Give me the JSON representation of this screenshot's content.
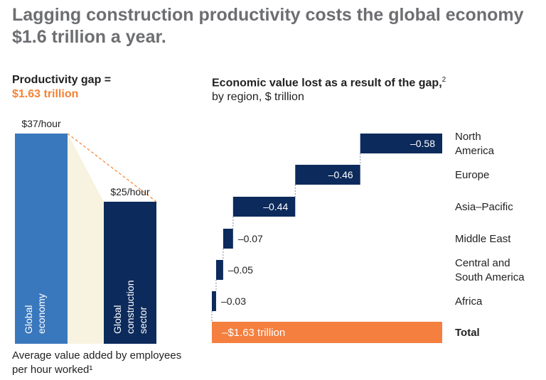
{
  "title": "Lagging construction productivity costs the global economy $1.6 trillion a year.",
  "left_panel": {
    "heading": "Productivity gap =",
    "gap_value": "$1.63 trillion",
    "footnote": "Average value added by employees per hour worked¹"
  },
  "right_panel": {
    "heading": "Economic value lost as a result of the gap,",
    "heading_sup": "2",
    "subheading": "by region, $ trillion"
  },
  "colors": {
    "blue": "#3a78bd",
    "navy": "#0c2a5b",
    "orange": "#f47f3f",
    "cream": "#f8f3e0",
    "title_gray": "#6d6e71",
    "dashed": "#f58233"
  },
  "chart_data": [
    {
      "type": "bar",
      "unit": "$/hour",
      "categories": [
        "Global economy",
        "Global construction sector"
      ],
      "category_lines": [
        [
          "Global",
          "economy"
        ],
        [
          "Global",
          "construction",
          "sector"
        ]
      ],
      "values": [
        37,
        25
      ],
      "value_labels": [
        "$37/hour",
        "$25/hour"
      ],
      "ylim": [
        0,
        37
      ]
    },
    {
      "type": "bar",
      "subtype": "waterfall-horizontal",
      "unit": "$ trillion",
      "categories": [
        "North America",
        "Europe",
        "Asia–Pacific",
        "Middle East",
        "Central and South America",
        "Africa"
      ],
      "category_lines": [
        [
          "North",
          "America"
        ],
        [
          "Europe"
        ],
        [
          "Asia–Pacific"
        ],
        [
          "Middle East"
        ],
        [
          "Central and",
          "South America"
        ],
        [
          "Africa"
        ]
      ],
      "values": [
        -0.58,
        -0.46,
        -0.44,
        -0.07,
        -0.05,
        -0.03
      ],
      "value_labels": [
        "–0.58",
        "–0.46",
        "–0.44",
        "–0.07",
        "–0.05",
        "–0.03"
      ],
      "total": {
        "label": "Total",
        "value": -1.63,
        "value_label": "–$1.63 trillion"
      }
    }
  ]
}
